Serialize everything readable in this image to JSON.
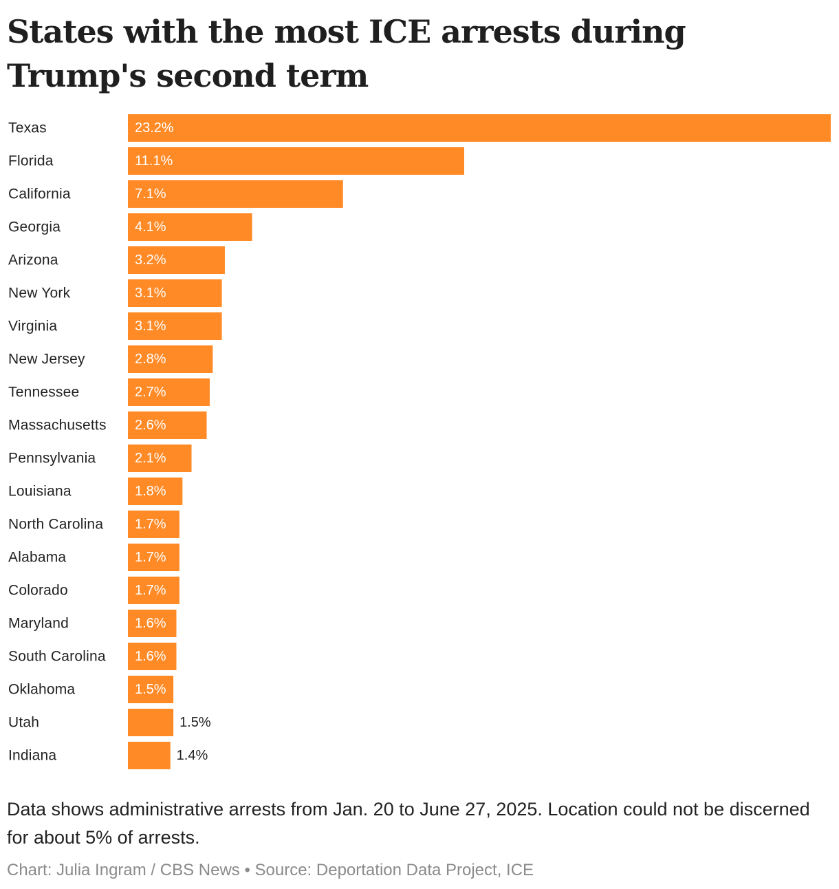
{
  "chart_data": {
    "type": "bar",
    "orientation": "horizontal",
    "title": "States with the most ICE arrests during Trump's second term",
    "xlabel": "",
    "ylabel": "",
    "unit": "%",
    "xlim": [
      0,
      23.2
    ],
    "grid": false,
    "bar_color": "#ff8a26",
    "categories": [
      "Texas",
      "Florida",
      "California",
      "Georgia",
      "Arizona",
      "New York",
      "Virginia",
      "New Jersey",
      "Tennessee",
      "Massachusetts",
      "Pennsylvania",
      "Louisiana",
      "North Carolina",
      "Alabama",
      "Colorado",
      "Maryland",
      "South Carolina",
      "Oklahoma",
      "Utah",
      "Indiana"
    ],
    "values": [
      23.2,
      11.1,
      7.1,
      4.1,
      3.2,
      3.1,
      3.1,
      2.8,
      2.7,
      2.6,
      2.1,
      1.8,
      1.7,
      1.7,
      1.7,
      1.6,
      1.6,
      1.5,
      1.5,
      1.4
    ],
    "value_labels": [
      "23.2%",
      "11.1%",
      "7.1%",
      "4.1%",
      "3.2%",
      "3.1%",
      "3.1%",
      "2.8%",
      "2.7%",
      "2.6%",
      "2.1%",
      "1.8%",
      "1.7%",
      "1.7%",
      "1.7%",
      "1.6%",
      "1.6%",
      "1.5%",
      "1.5%",
      "1.4%"
    ],
    "value_label_position": [
      "inside",
      "inside",
      "inside",
      "inside",
      "inside",
      "inside",
      "inside",
      "inside",
      "inside",
      "inside",
      "inside",
      "inside",
      "inside",
      "inside",
      "inside",
      "inside",
      "inside",
      "inside",
      "outside",
      "outside"
    ]
  },
  "note": "Data shows administrative arrests from Jan. 20 to June 27, 2025. Location could not be discerned for about 5% of arrests.",
  "credit": "Chart: Julia Ingram / CBS News • Source: Deportation Data Project, ICE"
}
